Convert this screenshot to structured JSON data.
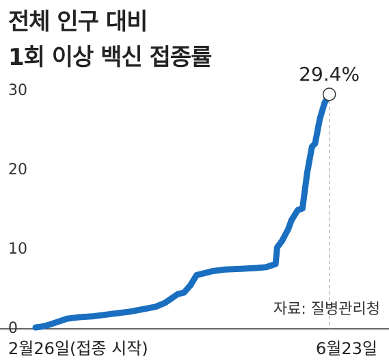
{
  "chart_data": {
    "type": "line",
    "title": [
      "전체 인구 대비",
      "1회 이상 백신 접종률"
    ],
    "xlabel": "",
    "ylabel": "",
    "x_labels": [
      "2월26일(접종 시작)",
      "6월23일"
    ],
    "x_range": [
      "2월26일",
      "6월23일"
    ],
    "ylim": [
      0,
      30
    ],
    "yticks": [
      "0",
      "10",
      "20",
      "30"
    ],
    "grid": false,
    "line_color": "#1a6fc0",
    "annotation": {
      "label": "29.4%",
      "value": 29.4
    },
    "source": "자료: 질병관리청",
    "series": [
      {
        "points": [
          [
            0.0,
            0.0
          ],
          [
            0.02,
            0.1
          ],
          [
            0.04,
            0.3
          ],
          [
            0.07,
            0.7
          ],
          [
            0.1,
            1.1
          ],
          [
            0.14,
            1.3
          ],
          [
            0.18,
            1.4
          ],
          [
            0.22,
            1.6
          ],
          [
            0.26,
            1.8
          ],
          [
            0.3,
            2.0
          ],
          [
            0.34,
            2.3
          ],
          [
            0.38,
            2.6
          ],
          [
            0.41,
            3.1
          ],
          [
            0.45,
            4.2
          ],
          [
            0.47,
            4.4
          ],
          [
            0.49,
            5.3
          ],
          [
            0.51,
            6.6
          ],
          [
            0.53,
            6.8
          ],
          [
            0.56,
            7.1
          ],
          [
            0.6,
            7.3
          ],
          [
            0.65,
            7.4
          ],
          [
            0.7,
            7.5
          ],
          [
            0.73,
            7.6
          ],
          [
            0.76,
            8.0
          ],
          [
            0.765,
            10.1
          ],
          [
            0.78,
            10.9
          ],
          [
            0.8,
            12.4
          ],
          [
            0.81,
            13.5
          ],
          [
            0.83,
            14.8
          ],
          [
            0.845,
            15.0
          ],
          [
            0.86,
            19.5
          ],
          [
            0.875,
            22.8
          ],
          [
            0.885,
            23.2
          ],
          [
            0.9,
            26.3
          ],
          [
            0.915,
            28.3
          ],
          [
            0.93,
            29.4
          ]
        ]
      }
    ]
  }
}
